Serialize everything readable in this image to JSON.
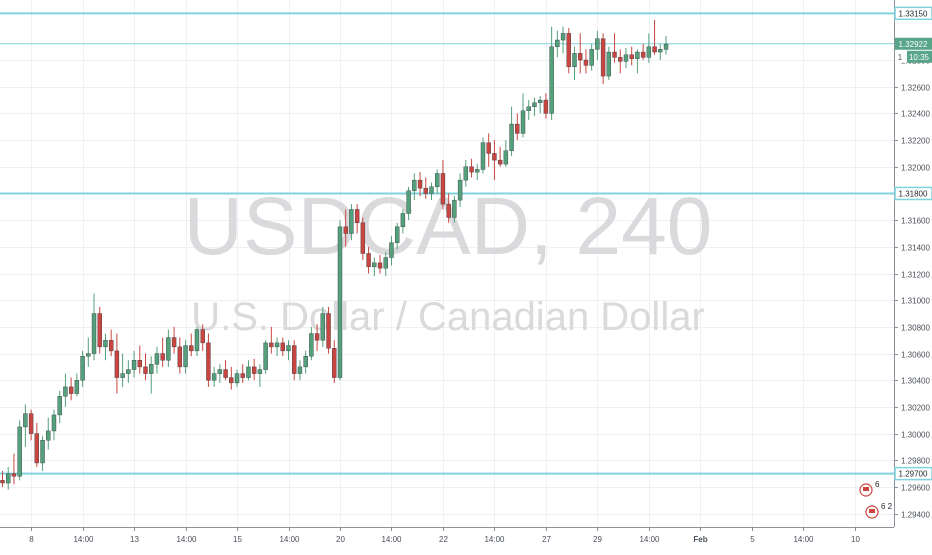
{
  "chart_data": {
    "type": "candlestick",
    "watermark": {
      "symbol": "USDCAD, 240",
      "name": "U.S. Dollar / Canadian Dollar"
    },
    "ylim": [
      1.293,
      1.3325
    ],
    "y_ticks": [
      "1.32800",
      "1.32600",
      "1.32400",
      "1.32200",
      "1.32000",
      "1.31600",
      "1.31400",
      "1.31200",
      "1.31000",
      "1.30800",
      "1.30600",
      "1.30400",
      "1.30200",
      "1.30000",
      "1.29800",
      "1.29600",
      "1.29400"
    ],
    "y_tick_values": [
      1.328,
      1.326,
      1.324,
      1.322,
      1.32,
      1.316,
      1.314,
      1.312,
      1.31,
      1.308,
      1.306,
      1.304,
      1.302,
      1.3,
      1.298,
      1.296,
      1.294
    ],
    "x_ticks": [
      "8",
      "14:00",
      "13",
      "14:00",
      "15",
      "14:00",
      "20",
      "14:00",
      "22",
      "14:00",
      "27",
      "29",
      "14:00",
      "Feb",
      "5",
      "14:00",
      "10"
    ],
    "x_tick_index": [
      5,
      14,
      23,
      32,
      41,
      50,
      59,
      68,
      77,
      86,
      95,
      104,
      113,
      122,
      131,
      140,
      149
    ],
    "horizontal_levels": [
      {
        "value": 1.3315,
        "label": "1.33150"
      },
      {
        "value": 1.318,
        "label": "1.31800"
      },
      {
        "value": 1.297,
        "label": "1.29700"
      }
    ],
    "current_price": {
      "value": 1.32922,
      "label": "1.32922",
      "countdown": "10:35",
      "badge_text": "1"
    },
    "event_markers": [
      {
        "label": "6"
      },
      {
        "label": "6 2"
      }
    ],
    "colors": {
      "up": "#53a07a",
      "down": "#c8463f",
      "level": "#7fd3dc",
      "price": "#58a58a"
    },
    "candles": [
      [
        1.2965,
        1.2972,
        1.296,
        1.2963
      ],
      [
        1.2963,
        1.2975,
        1.2958,
        1.297
      ],
      [
        1.297,
        1.2985,
        1.2962,
        1.2968
      ],
      [
        1.2968,
        1.301,
        1.2965,
        1.3005
      ],
      [
        1.3005,
        1.3022,
        1.299,
        1.3015
      ],
      [
        1.3015,
        1.3018,
        1.2995,
        1.3
      ],
      [
        1.3,
        1.3008,
        1.2975,
        1.2978
      ],
      [
        1.2978,
        1.2998,
        1.2972,
        1.2995
      ],
      [
        1.2995,
        1.3012,
        1.2988,
        1.3002
      ],
      [
        1.3002,
        1.3018,
        1.2995,
        1.3014
      ],
      [
        1.3014,
        1.3032,
        1.3008,
        1.3028
      ],
      [
        1.3028,
        1.3045,
        1.302,
        1.3035
      ],
      [
        1.3035,
        1.3042,
        1.3025,
        1.303
      ],
      [
        1.303,
        1.3045,
        1.3028,
        1.304
      ],
      [
        1.304,
        1.3062,
        1.3035,
        1.3058
      ],
      [
        1.3058,
        1.3072,
        1.305,
        1.306
      ],
      [
        1.306,
        1.3105,
        1.3055,
        1.309
      ],
      [
        1.309,
        1.3095,
        1.306,
        1.3065
      ],
      [
        1.3065,
        1.3075,
        1.3055,
        1.307
      ],
      [
        1.307,
        1.3078,
        1.3058,
        1.3062
      ],
      [
        1.3062,
        1.3075,
        1.303,
        1.3042
      ],
      [
        1.3042,
        1.306,
        1.3035,
        1.3045
      ],
      [
        1.3045,
        1.3055,
        1.3038,
        1.3048
      ],
      [
        1.3048,
        1.3062,
        1.3042,
        1.3055
      ],
      [
        1.3055,
        1.3066,
        1.3045,
        1.305
      ],
      [
        1.305,
        1.306,
        1.304,
        1.3045
      ],
      [
        1.3045,
        1.3058,
        1.303,
        1.3052
      ],
      [
        1.3052,
        1.3065,
        1.3045,
        1.306
      ],
      [
        1.306,
        1.3072,
        1.305,
        1.3055
      ],
      [
        1.3055,
        1.3078,
        1.305,
        1.3072
      ],
      [
        1.3072,
        1.308,
        1.306,
        1.3065
      ],
      [
        1.3065,
        1.3072,
        1.3045,
        1.305
      ],
      [
        1.305,
        1.307,
        1.3045,
        1.3066
      ],
      [
        1.3066,
        1.3075,
        1.3058,
        1.3062
      ],
      [
        1.3062,
        1.308,
        1.3058,
        1.3078
      ],
      [
        1.3078,
        1.3082,
        1.3062,
        1.3068
      ],
      [
        1.3068,
        1.3075,
        1.3035,
        1.304
      ],
      [
        1.304,
        1.305,
        1.3035,
        1.3045
      ],
      [
        1.3045,
        1.3052,
        1.3038,
        1.3048
      ],
      [
        1.3048,
        1.3055,
        1.304,
        1.3042
      ],
      [
        1.3042,
        1.305,
        1.3033,
        1.3038
      ],
      [
        1.3038,
        1.3048,
        1.3035,
        1.3045
      ],
      [
        1.3045,
        1.3052,
        1.3038,
        1.3042
      ],
      [
        1.3042,
        1.3055,
        1.304,
        1.305
      ],
      [
        1.305,
        1.3056,
        1.304,
        1.3045
      ],
      [
        1.3045,
        1.3052,
        1.3035,
        1.3048
      ],
      [
        1.3048,
        1.307,
        1.3045,
        1.3068
      ],
      [
        1.3068,
        1.308,
        1.306,
        1.3065
      ],
      [
        1.3065,
        1.3072,
        1.3058,
        1.3068
      ],
      [
        1.3068,
        1.3072,
        1.3058,
        1.3062
      ],
      [
        1.3062,
        1.307,
        1.3055,
        1.3066
      ],
      [
        1.3066,
        1.307,
        1.304,
        1.3045
      ],
      [
        1.3045,
        1.3055,
        1.304,
        1.305
      ],
      [
        1.305,
        1.3062,
        1.3045,
        1.3058
      ],
      [
        1.3058,
        1.308,
        1.3055,
        1.3075
      ],
      [
        1.3075,
        1.3082,
        1.3062,
        1.307
      ],
      [
        1.307,
        1.3095,
        1.3065,
        1.309
      ],
      [
        1.309,
        1.3095,
        1.306,
        1.3064
      ],
      [
        1.3064,
        1.307,
        1.3038,
        1.3042
      ],
      [
        1.3042,
        1.316,
        1.304,
        1.3155
      ],
      [
        1.3155,
        1.3168,
        1.314,
        1.315
      ],
      [
        1.315,
        1.3172,
        1.3145,
        1.3168
      ],
      [
        1.3168,
        1.3172,
        1.315,
        1.3158
      ],
      [
        1.3158,
        1.3162,
        1.313,
        1.3135
      ],
      [
        1.3135,
        1.314,
        1.312,
        1.3125
      ],
      [
        1.3125,
        1.3132,
        1.3118,
        1.3128
      ],
      [
        1.3128,
        1.3134,
        1.312,
        1.3124
      ],
      [
        1.3124,
        1.3136,
        1.3118,
        1.3132
      ],
      [
        1.3132,
        1.3148,
        1.3126,
        1.3143
      ],
      [
        1.3143,
        1.3158,
        1.3138,
        1.3155
      ],
      [
        1.3155,
        1.3168,
        1.315,
        1.3165
      ],
      [
        1.3165,
        1.3185,
        1.316,
        1.3182
      ],
      [
        1.3182,
        1.3195,
        1.3175,
        1.319
      ],
      [
        1.319,
        1.3196,
        1.3178,
        1.3184
      ],
      [
        1.3184,
        1.3192,
        1.3176,
        1.318
      ],
      [
        1.318,
        1.3188,
        1.3175,
        1.3185
      ],
      [
        1.3185,
        1.3198,
        1.318,
        1.3195
      ],
      [
        1.3195,
        1.3205,
        1.3168,
        1.3172
      ],
      [
        1.3172,
        1.318,
        1.3158,
        1.3162
      ],
      [
        1.3162,
        1.3178,
        1.3158,
        1.3175
      ],
      [
        1.3175,
        1.3195,
        1.317,
        1.319
      ],
      [
        1.319,
        1.3205,
        1.3185,
        1.32
      ],
      [
        1.32,
        1.3206,
        1.3192,
        1.3196
      ],
      [
        1.3196,
        1.3202,
        1.319,
        1.3198
      ],
      [
        1.3198,
        1.3222,
        1.3195,
        1.3218
      ],
      [
        1.3218,
        1.3225,
        1.32,
        1.321
      ],
      [
        1.321,
        1.322,
        1.319,
        1.3205
      ],
      [
        1.3205,
        1.3215,
        1.32,
        1.3202
      ],
      [
        1.3202,
        1.322,
        1.32,
        1.3212
      ],
      [
        1.3212,
        1.3245,
        1.3208,
        1.3232
      ],
      [
        1.3232,
        1.324,
        1.322,
        1.3225
      ],
      [
        1.3225,
        1.3255,
        1.3222,
        1.3242
      ],
      [
        1.3242,
        1.325,
        1.3235,
        1.3245
      ],
      [
        1.3245,
        1.3252,
        1.3238,
        1.3248
      ],
      [
        1.3248,
        1.3253,
        1.324,
        1.325
      ],
      [
        1.325,
        1.3255,
        1.3236,
        1.324
      ],
      [
        1.324,
        1.3305,
        1.3235,
        1.329
      ],
      [
        1.329,
        1.3302,
        1.3282,
        1.3295
      ],
      [
        1.3295,
        1.3305,
        1.3285,
        1.33
      ],
      [
        1.33,
        1.3304,
        1.327,
        1.3275
      ],
      [
        1.3275,
        1.329,
        1.3265,
        1.3285
      ],
      [
        1.3285,
        1.33,
        1.327,
        1.328
      ],
      [
        1.328,
        1.3288,
        1.327,
        1.3276
      ],
      [
        1.3276,
        1.3292,
        1.3272,
        1.3288
      ],
      [
        1.3288,
        1.3302,
        1.328,
        1.3296
      ],
      [
        1.3296,
        1.33,
        1.3262,
        1.3268
      ],
      [
        1.3268,
        1.329,
        1.3265,
        1.3286
      ],
      [
        1.3286,
        1.33,
        1.3278,
        1.3282
      ],
      [
        1.3282,
        1.3288,
        1.327,
        1.3279
      ],
      [
        1.3279,
        1.3289,
        1.3274,
        1.3284
      ],
      [
        1.3284,
        1.329,
        1.3276,
        1.3281
      ],
      [
        1.3281,
        1.3288,
        1.327,
        1.3286
      ],
      [
        1.3286,
        1.3292,
        1.328,
        1.3282
      ],
      [
        1.3282,
        1.33,
        1.3278,
        1.329
      ],
      [
        1.329,
        1.331,
        1.3284,
        1.3286
      ],
      [
        1.3286,
        1.3292,
        1.328,
        1.3288
      ],
      [
        1.3288,
        1.3298,
        1.3284,
        1.3292
      ]
    ]
  }
}
